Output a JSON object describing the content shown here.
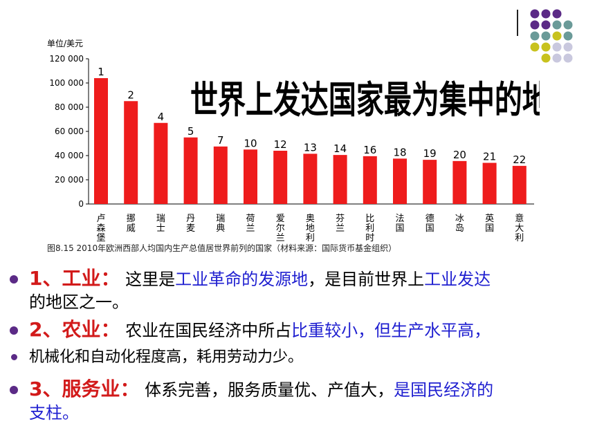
{
  "chart_data": {
    "type": "bar",
    "ylabel": "单位/美元",
    "ylim": [
      0,
      120000
    ],
    "yticks": [
      "0",
      "20 000",
      "40 000",
      "60 000",
      "80 000",
      "100 000",
      "120 000"
    ],
    "ytick_values": [
      0,
      20000,
      40000,
      60000,
      80000,
      100000,
      120000
    ],
    "categories": [
      "卢森堡",
      "挪威",
      "瑞士",
      "丹麦",
      "瑞典",
      "荷兰",
      "爱尔兰",
      "奥地利",
      "芬兰",
      "比利时",
      "法国",
      "德国",
      "冰岛",
      "英国",
      "意大利"
    ],
    "ranks": [
      "1",
      "2",
      "4",
      "5",
      "7",
      "10",
      "12",
      "13",
      "14",
      "16",
      "18",
      "19",
      "20",
      "21",
      "22"
    ],
    "values": [
      104000,
      85000,
      67000,
      55000,
      47500,
      45000,
      44000,
      41500,
      40500,
      39500,
      37500,
      36500,
      35500,
      34000,
      31500
    ],
    "overlay_title": "世界上发达国家最为集中的地区",
    "caption": "图8.15  2010年欧洲西部人均国内生产总值居世界前列的国家（材料来源：国际货币基金组织）",
    "bar_color": "#ee1c1c"
  },
  "bullets": [
    {
      "head": "1、工业：",
      "parts": [
        "这里是",
        "工业革命的发源地",
        "，是目前世界上",
        "工业发达"
      ],
      "cont": "的地区之一。"
    },
    {
      "head": "2、农业：",
      "parts": [
        "农业在国民经济中所占",
        "比重较小，但生产水平高，"
      ]
    },
    {
      "text": "机械化和自动化程度高，耗用劳动力少。"
    },
    {
      "head": "3、服务业：",
      "parts": [
        "体系完善，服务质量优、产值大，",
        "是国民经济的"
      ],
      "cont": "支柱。"
    }
  ],
  "colors": {
    "purple": "#5b2a86",
    "teal": "#6a9a98",
    "olive": "#c8c21e",
    "lavender": "#c9c8de",
    "red": "#d21a1a",
    "blue": "#1f1fd0"
  }
}
